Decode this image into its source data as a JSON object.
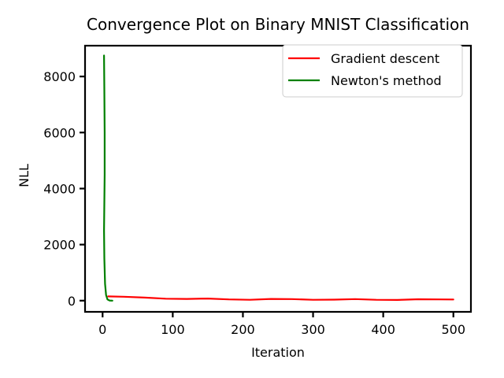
{
  "chart_data": {
    "type": "line",
    "title": "Convergence Plot on Binary MNIST Classification",
    "xlabel": "Iteration",
    "ylabel": "NLL",
    "xlim": [
      -25,
      525
    ],
    "ylim": [
      -400,
      9100
    ],
    "xticks": [
      0,
      100,
      200,
      300,
      400,
      500
    ],
    "yticks": [
      0,
      2000,
      4000,
      6000,
      8000
    ],
    "grid": false,
    "legend_position": "top-right",
    "series": [
      {
        "name": "Gradient descent",
        "color": "#ff0000",
        "x": [
          8,
          30,
          60,
          90,
          120,
          150,
          180,
          210,
          240,
          270,
          300,
          330,
          360,
          390,
          420,
          450,
          480,
          500
        ],
        "y": [
          150,
          140,
          110,
          70,
          60,
          75,
          45,
          30,
          60,
          55,
          30,
          35,
          55,
          30,
          25,
          50,
          45,
          40
        ]
      },
      {
        "name": "Newton's method",
        "color": "#008000",
        "x": [
          2,
          2.5,
          3,
          3,
          2.5,
          2,
          2.5,
          3.5,
          5,
          7,
          10,
          14
        ],
        "y": [
          8750,
          7500,
          6000,
          4500,
          3500,
          2500,
          1500,
          600,
          200,
          40,
          5,
          0
        ]
      }
    ]
  }
}
